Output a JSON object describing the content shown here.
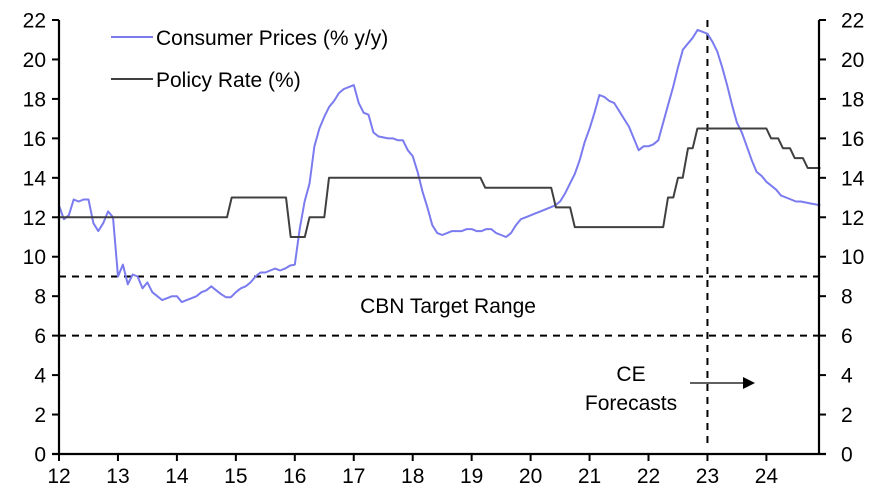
{
  "chart_data": {
    "type": "line",
    "title": "",
    "xlabel": "",
    "ylabel": "",
    "ylabel_right": "",
    "xlim": [
      2012.0,
      2024.917
    ],
    "ylim": [
      0,
      22
    ],
    "ylim_right": [
      0,
      22
    ],
    "grid": false,
    "legend_position": "top-left",
    "x_ticks": [
      12,
      13,
      14,
      15,
      16,
      17,
      18,
      19,
      20,
      21,
      22,
      23,
      24
    ],
    "x_tick_labels": [
      "12",
      "13",
      "14",
      "15",
      "16",
      "17",
      "18",
      "19",
      "20",
      "21",
      "22",
      "23",
      "24"
    ],
    "y_ticks": [
      0,
      2,
      4,
      6,
      8,
      10,
      12,
      14,
      16,
      18,
      20,
      22
    ],
    "y_tick_labels": [
      "0",
      "2",
      "4",
      "6",
      "8",
      "10",
      "12",
      "14",
      "16",
      "18",
      "20",
      "22"
    ],
    "series": [
      {
        "name": "Consumer Prices (% y/y)",
        "color": "#7b7bf0",
        "start": 2012.0,
        "step": "monthly",
        "values": [
          12.6,
          11.9,
          12.1,
          12.9,
          12.8,
          12.9,
          12.9,
          11.7,
          11.3,
          11.7,
          12.3,
          12.0,
          9.0,
          9.6,
          8.6,
          9.1,
          9.0,
          8.4,
          8.7,
          8.2,
          8.0,
          7.8,
          7.9,
          8.0,
          8.0,
          7.7,
          7.8,
          7.9,
          8.0,
          8.2,
          8.3,
          8.5,
          8.3,
          8.1,
          7.95,
          7.95,
          8.2,
          8.4,
          8.5,
          8.7,
          9.0,
          9.2,
          9.2,
          9.3,
          9.4,
          9.3,
          9.4,
          9.55,
          9.6,
          11.4,
          12.8,
          13.7,
          15.6,
          16.5,
          17.1,
          17.6,
          17.9,
          18.3,
          18.5,
          18.6,
          18.7,
          17.8,
          17.3,
          17.2,
          16.3,
          16.1,
          16.05,
          16.0,
          16.0,
          15.9,
          15.9,
          15.4,
          15.1,
          14.3,
          13.3,
          12.5,
          11.6,
          11.2,
          11.1,
          11.2,
          11.3,
          11.3,
          11.3,
          11.4,
          11.4,
          11.3,
          11.3,
          11.4,
          11.4,
          11.2,
          11.1,
          11.0,
          11.2,
          11.6,
          11.9,
          12.0,
          12.1,
          12.2,
          12.3,
          12.4,
          12.5,
          12.6,
          12.8,
          13.2,
          13.7,
          14.2,
          14.9,
          15.8,
          16.5,
          17.3,
          18.2,
          18.1,
          17.9,
          17.8,
          17.4,
          17.0,
          16.6,
          16.0,
          15.4,
          15.6,
          15.6,
          15.7,
          15.9,
          16.8,
          17.7,
          18.6,
          19.6,
          20.5,
          20.8,
          21.1,
          21.5,
          21.4,
          21.3,
          20.9,
          20.4,
          19.6,
          18.7,
          17.7,
          16.8,
          16.3,
          15.6,
          14.9,
          14.3,
          14.1,
          13.8,
          13.6,
          13.4,
          13.1,
          13.0,
          12.9,
          12.8,
          12.8,
          12.75,
          12.7,
          12.65,
          12.6
        ]
      },
      {
        "name": "Policy Rate (%)",
        "color": "#404040",
        "step_series": true,
        "points": [
          [
            2012.0,
            12.0
          ],
          [
            2014.85,
            12.0
          ],
          [
            2014.93,
            13.0
          ],
          [
            2015.85,
            13.0
          ],
          [
            2015.93,
            11.0
          ],
          [
            2016.17,
            11.0
          ],
          [
            2016.25,
            12.0
          ],
          [
            2016.5,
            12.0
          ],
          [
            2016.58,
            14.0
          ],
          [
            2019.15,
            14.0
          ],
          [
            2019.23,
            13.5
          ],
          [
            2020.35,
            13.5
          ],
          [
            2020.43,
            12.5
          ],
          [
            2020.67,
            12.5
          ],
          [
            2020.75,
            11.5
          ],
          [
            2022.25,
            11.5
          ],
          [
            2022.33,
            13.0
          ],
          [
            2022.42,
            13.0
          ],
          [
            2022.5,
            14.0
          ],
          [
            2022.58,
            14.0
          ],
          [
            2022.67,
            15.5
          ],
          [
            2022.75,
            15.5
          ],
          [
            2022.83,
            16.5
          ],
          [
            2024.0,
            16.5
          ],
          [
            2024.08,
            16.0
          ],
          [
            2024.2,
            16.0
          ],
          [
            2024.28,
            15.5
          ],
          [
            2024.4,
            15.5
          ],
          [
            2024.48,
            15.0
          ],
          [
            2024.62,
            15.0
          ],
          [
            2024.7,
            14.5
          ],
          [
            2024.917,
            14.5
          ]
        ]
      }
    ],
    "reference_lines": [
      {
        "orientation": "horizontal",
        "value": 9,
        "style": "dashed",
        "color": "#000000"
      },
      {
        "orientation": "horizontal",
        "value": 6,
        "style": "dashed",
        "color": "#000000"
      },
      {
        "orientation": "vertical",
        "value": 2023.0,
        "style": "dashed",
        "color": "#000000"
      }
    ],
    "annotations": [
      {
        "text": "CBN Target Range",
        "x": 2018.05,
        "y": 7.5
      },
      {
        "text_lines": [
          "CE",
          "Forecasts"
        ],
        "x": 2021.1,
        "y": 3.3
      },
      {
        "type": "arrow",
        "from": [
          2022.1,
          3.6
        ],
        "to": [
          2023.1,
          3.6
        ]
      }
    ]
  }
}
